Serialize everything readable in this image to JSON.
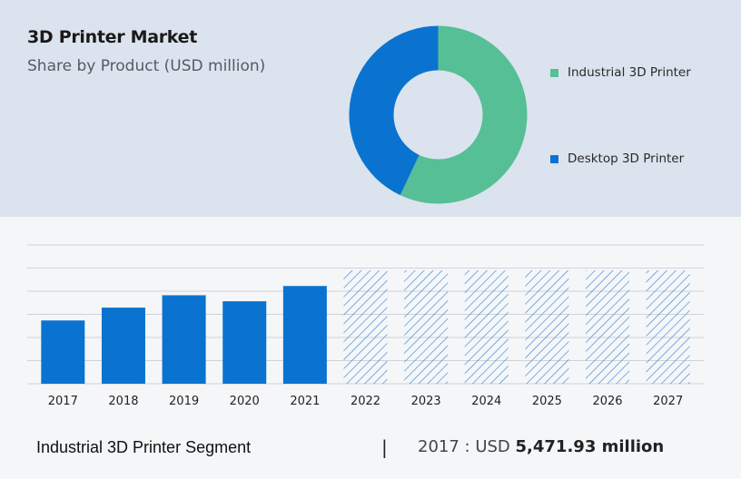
{
  "header": {
    "title": "3D Printer Market",
    "subtitle": "Share by Product (USD million)"
  },
  "colors": {
    "industrial": "#56bf96",
    "desktop": "#0a73d0",
    "bar": "#0a73d0",
    "forecast_hatch": "#2a7fd0",
    "grid": "#cfd3d8"
  },
  "chart_data": [
    {
      "type": "pie",
      "variant": "donut",
      "labels": [
        "Industrial 3D Printer",
        "Desktop 3D Printer"
      ],
      "values": [
        57,
        43
      ],
      "legend_position": "right"
    },
    {
      "type": "bar",
      "categories": [
        "2017",
        "2018",
        "2019",
        "2020",
        "2021",
        "2022",
        "2023",
        "2024",
        "2025",
        "2026",
        "2027"
      ],
      "values": [
        5471.93,
        6581,
        7651,
        7131,
        8451,
        null,
        null,
        null,
        null,
        null,
        null
      ],
      "forecast_categories": [
        "2022",
        "2023",
        "2024",
        "2025",
        "2026",
        "2027"
      ],
      "forecast_style": "hatched",
      "ylim": [
        0,
        12000
      ],
      "grid": true,
      "y_tick_labels_visible": false
    }
  ],
  "footer": {
    "segment_label": "Industrial 3D Printer Segment",
    "separator": "|",
    "year_prefix": "2017 : USD",
    "value": "5,471.93 million"
  }
}
